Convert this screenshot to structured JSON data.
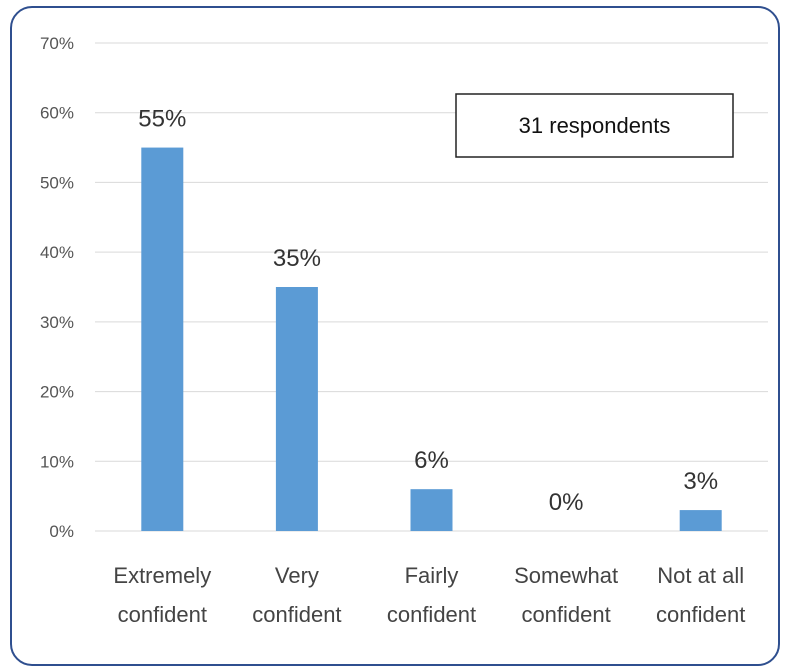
{
  "chart_data": {
    "type": "bar",
    "categories": [
      [
        "Extremely",
        "confident"
      ],
      [
        "Very",
        "confident"
      ],
      [
        "Fairly",
        "confident"
      ],
      [
        "Somewhat",
        "confident"
      ],
      [
        "Not at all",
        "confident"
      ]
    ],
    "values": [
      55,
      35,
      6,
      0,
      3
    ],
    "data_labels": [
      "55%",
      "35%",
      "6%",
      "0%",
      "3%"
    ],
    "yticks": [
      "0%",
      "10%",
      "20%",
      "30%",
      "40%",
      "50%",
      "60%",
      "70%"
    ],
    "ylim": [
      0,
      70
    ],
    "grid": true,
    "legend": "none",
    "annotation": "31 respondents",
    "bar_color": "#5b9bd5",
    "grid_color": "#d9d9d9"
  }
}
